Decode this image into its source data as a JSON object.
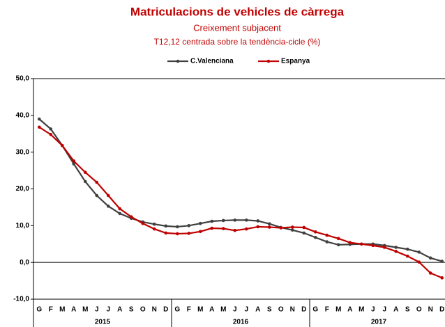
{
  "chart_data": {
    "type": "line",
    "title": "Matriculacions de vehicles de càrrega",
    "subtitle": "Creixement subjacent",
    "subtitle2": "T12,12 centrada sobre la tendència-cicle (%)",
    "categories": [
      "G",
      "F",
      "M",
      "A",
      "M",
      "J",
      "J",
      "A",
      "S",
      "O",
      "N",
      "D",
      "G",
      "F",
      "M",
      "A",
      "M",
      "J",
      "J",
      "A",
      "S",
      "O",
      "N",
      "D",
      "G",
      "F",
      "M",
      "A",
      "M",
      "J",
      "J",
      "A",
      "S",
      "O",
      "N",
      "D"
    ],
    "years": [
      "2015",
      "2016",
      "2017"
    ],
    "series": [
      {
        "name": "C.Valenciana",
        "color": "#404040",
        "values": [
          39.0,
          36.3,
          31.8,
          26.8,
          22.0,
          18.2,
          15.3,
          13.3,
          12.0,
          11.0,
          10.4,
          9.9,
          9.7,
          10.0,
          10.6,
          11.2,
          11.4,
          11.5,
          11.5,
          11.3,
          10.5,
          9.5,
          8.8,
          8.0,
          6.8,
          5.6,
          4.8,
          4.9,
          5.0,
          5.0,
          4.6,
          4.1,
          3.6,
          2.8,
          1.2,
          0.3
        ]
      },
      {
        "name": "Espanya",
        "color": "#c00000",
        "values": [
          36.8,
          34.8,
          31.8,
          27.6,
          24.5,
          21.8,
          18.2,
          14.6,
          12.4,
          10.6,
          9.1,
          8.0,
          7.8,
          7.9,
          8.4,
          9.3,
          9.2,
          8.7,
          9.1,
          9.7,
          9.6,
          9.4,
          9.6,
          9.5,
          8.3,
          7.4,
          6.5,
          5.4,
          5.0,
          4.6,
          4.1,
          3.0,
          1.7,
          0.1,
          -2.9,
          -4.2
        ]
      }
    ],
    "ylim": [
      -10,
      50
    ],
    "yticks": [
      {
        "value": -10,
        "label": "-10,0"
      },
      {
        "value": 0,
        "label": "0,0"
      },
      {
        "value": 10,
        "label": "10,0"
      },
      {
        "value": 20,
        "label": "20,0"
      },
      {
        "value": 30,
        "label": "30,0"
      },
      {
        "value": 40,
        "label": "40,0"
      },
      {
        "value": 50,
        "label": "50,0"
      }
    ],
    "legend": "top"
  }
}
